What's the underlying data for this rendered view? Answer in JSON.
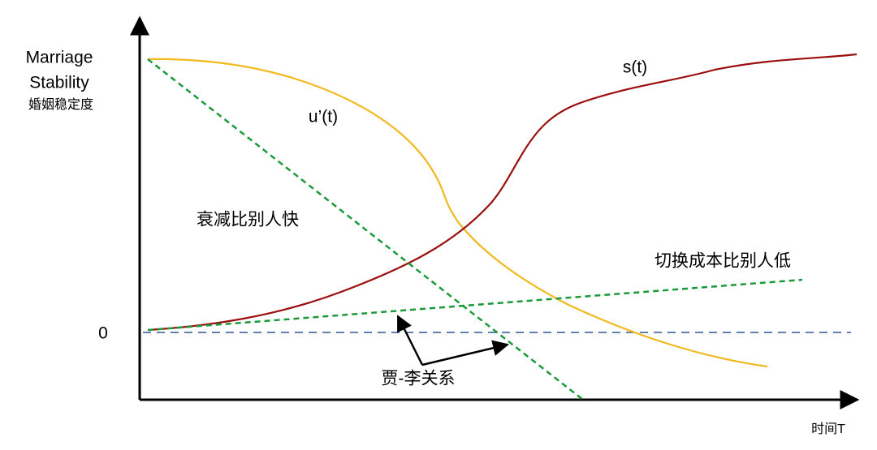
{
  "y_axis": {
    "title_lines": [
      "Marriage",
      "Stability"
    ],
    "subtitle": "婚姻稳定度",
    "zero_label": "0"
  },
  "x_axis": {
    "label": "时间T"
  },
  "curves": {
    "u_prime": "u’(t)",
    "s": "s(t)"
  },
  "annotations": {
    "decay": "衰减比别人快",
    "switch_cost": "切换成本比别人低",
    "relation": "贾-李关系"
  }
}
